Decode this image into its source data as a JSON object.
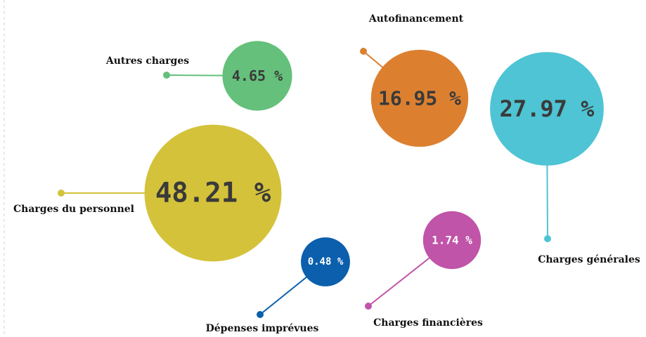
{
  "chart_data": {
    "type": "bubble",
    "categories": [
      "Charges du personnel",
      "Autres charges",
      "Autofinancement",
      "Charges générales",
      "Charges financières",
      "Dépenses imprévues"
    ],
    "values": [
      48.21,
      4.65,
      16.95,
      27.97,
      1.74,
      0.48
    ],
    "value_labels": [
      "48.21 %",
      "4.65 %",
      "16.95 %",
      "27.97 %",
      "1.74 %",
      "0.48 %"
    ],
    "colors": [
      "#d4c23a",
      "#64c07a",
      "#dc8030",
      "#4ec4d4",
      "#c054a8",
      "#0b5fad"
    ],
    "text_colors": [
      "#3a3a3a",
      "#3a3a3a",
      "#3a3a3a",
      "#3a3a3a",
      "#ffffff",
      "#ffffff"
    ]
  }
}
